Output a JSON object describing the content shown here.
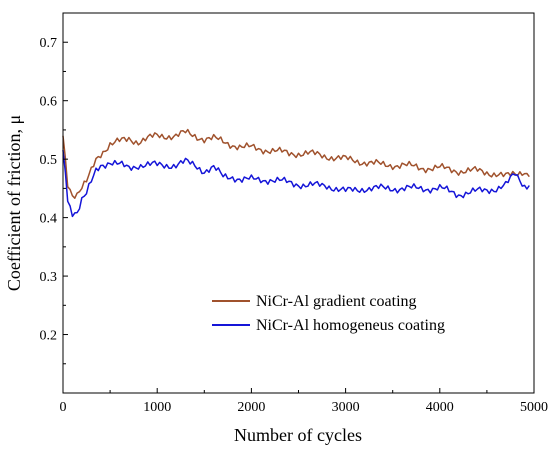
{
  "chart_data": {
    "type": "line",
    "title": "",
    "xlabel": "Number of cycles",
    "ylabel": "Coefficient of friction, μ",
    "xlim": [
      0,
      5000
    ],
    "ylim": [
      0.1,
      0.75
    ],
    "xticks": [
      0,
      1000,
      2000,
      3000,
      4000,
      5000
    ],
    "yticks": [
      0.2,
      0.3,
      0.4,
      0.5,
      0.6,
      0.7
    ],
    "xtick_labels": [
      "0",
      "1000",
      "2000",
      "3000",
      "4000",
      "5000"
    ],
    "ytick_labels": [
      "0.2",
      "0.3",
      "0.4",
      "0.5",
      "0.6",
      "0.7"
    ],
    "grid": false,
    "legend_position": "center-right",
    "series": [
      {
        "name": "NiCr-Al gradient coating",
        "color": "#a0522d",
        "x": [
          0,
          25,
          50,
          100,
          150,
          200,
          250,
          300,
          350,
          400,
          500,
          600,
          700,
          800,
          900,
          1000,
          1100,
          1200,
          1300,
          1400,
          1500,
          1600,
          1700,
          1800,
          1900,
          2000,
          2200,
          2400,
          2600,
          2800,
          3000,
          3200,
          3400,
          3600,
          3800,
          4000,
          4200,
          4400,
          4600,
          4700,
          4800,
          4900,
          4950
        ],
        "y": [
          0.54,
          0.5,
          0.46,
          0.44,
          0.44,
          0.45,
          0.46,
          0.48,
          0.5,
          0.51,
          0.525,
          0.53,
          0.535,
          0.53,
          0.535,
          0.54,
          0.54,
          0.54,
          0.545,
          0.54,
          0.535,
          0.535,
          0.53,
          0.525,
          0.52,
          0.52,
          0.515,
          0.51,
          0.51,
          0.505,
          0.5,
          0.495,
          0.49,
          0.49,
          0.485,
          0.485,
          0.48,
          0.48,
          0.475,
          0.47,
          0.475,
          0.48,
          0.47
        ]
      },
      {
        "name": "NiCr-Al homogeneus coating",
        "color": "#1515d8",
        "x": [
          0,
          25,
          50,
          100,
          150,
          200,
          250,
          300,
          350,
          400,
          500,
          600,
          700,
          800,
          900,
          1000,
          1100,
          1200,
          1300,
          1400,
          1500,
          1600,
          1700,
          1800,
          1900,
          2000,
          2200,
          2400,
          2600,
          2800,
          3000,
          3200,
          3400,
          3600,
          3800,
          4000,
          4200,
          4400,
          4600,
          4700,
          4800,
          4900,
          4950
        ],
        "y": [
          0.51,
          0.48,
          0.43,
          0.41,
          0.41,
          0.43,
          0.44,
          0.46,
          0.48,
          0.49,
          0.495,
          0.49,
          0.485,
          0.49,
          0.49,
          0.49,
          0.49,
          0.49,
          0.495,
          0.49,
          0.48,
          0.485,
          0.47,
          0.47,
          0.465,
          0.465,
          0.465,
          0.46,
          0.455,
          0.455,
          0.445,
          0.45,
          0.45,
          0.45,
          0.45,
          0.45,
          0.44,
          0.445,
          0.45,
          0.455,
          0.475,
          0.455,
          0.455
        ]
      }
    ]
  }
}
